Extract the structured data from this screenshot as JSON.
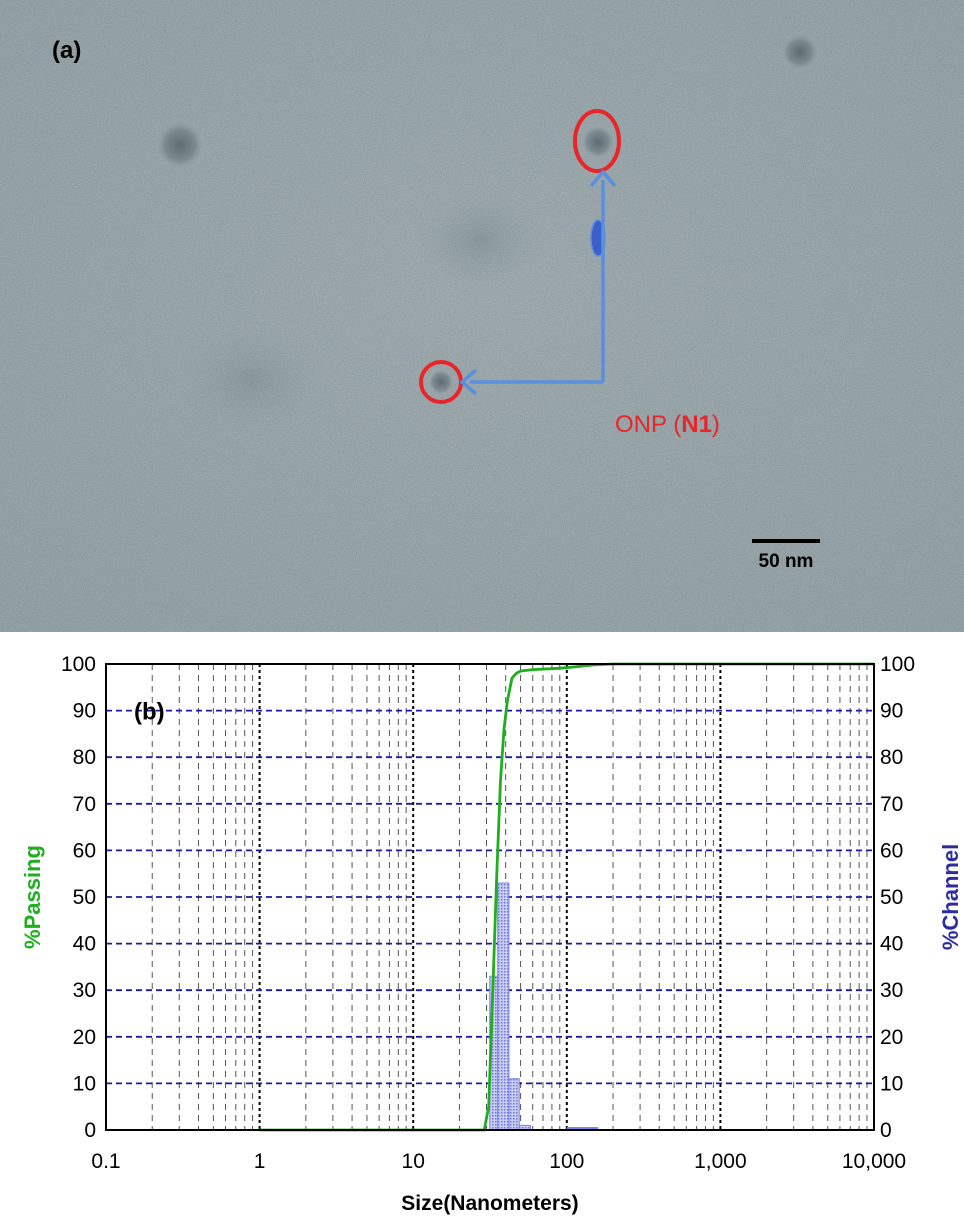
{
  "panel_a": {
    "label": "(a)",
    "annotation_prefix": "ONP (",
    "annotation_bold": "N1",
    "annotation_suffix": ")",
    "scale_bar_label": "50 nm",
    "colors": {
      "circle": "#e8262a",
      "arrow": "#5b8fe0",
      "label": "#e8262a",
      "background": "#a7b4b8"
    }
  },
  "panel_b": {
    "label": "(b)",
    "chart_data": {
      "type": "bar",
      "xlabel": "Size(Nanometers)",
      "ylabel_left": "%Passing",
      "ylabel_right": "%Channel",
      "x_scale": "log",
      "xlim": [
        0.1,
        10000
      ],
      "ylim": [
        0,
        100
      ],
      "x_ticks": [
        "0.1",
        "1",
        "10",
        "100",
        "1,000",
        "10,000"
      ],
      "y_ticks": [
        "0",
        "10",
        "20",
        "30",
        "40",
        "50",
        "60",
        "70",
        "80",
        "90",
        "100"
      ],
      "grid": true,
      "series": [
        {
          "name": "%Passing",
          "type": "line",
          "color": "#1fae1f",
          "x": [
            1,
            29,
            31,
            33,
            35,
            37,
            39,
            41,
            44,
            47,
            50,
            60,
            80,
            100,
            150,
            200,
            1000,
            10000
          ],
          "y": [
            0,
            0,
            5,
            30,
            55,
            75,
            86,
            92,
            97,
            98,
            98.5,
            98.8,
            99,
            99.2,
            99.8,
            100,
            100,
            100
          ]
        },
        {
          "name": "%Channel",
          "type": "bar",
          "color": "#7b86e6",
          "bins": [
            {
              "x0": 31.5,
              "x1": 35.5,
              "value": 33
            },
            {
              "x0": 35.5,
              "x1": 42,
              "value": 53
            },
            {
              "x0": 42,
              "x1": 49,
              "value": 11
            },
            {
              "x0": 49,
              "x1": 58,
              "value": 1
            }
          ]
        }
      ]
    }
  }
}
